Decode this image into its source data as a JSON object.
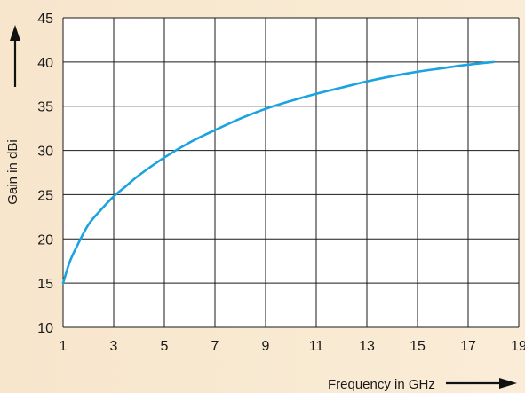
{
  "chart_data": {
    "type": "line",
    "title": "",
    "xlabel": "Frequency  in GHz",
    "ylabel": "Gain in dBi",
    "xlim": [
      1,
      19
    ],
    "ylim": [
      10,
      45
    ],
    "xticks": [
      "1",
      "3",
      "5",
      "7",
      "9",
      "11",
      "13",
      "15",
      "17",
      "19"
    ],
    "yticks": [
      "10",
      "15",
      "20",
      "25",
      "30",
      "35",
      "40",
      "45"
    ],
    "grid": true,
    "legend": "none",
    "series": [
      {
        "color": "#1aa3e0",
        "x": [
          1,
          1.25,
          1.5,
          2,
          2.5,
          3,
          3.5,
          4,
          5,
          6,
          7,
          8,
          9,
          10,
          11,
          12,
          13,
          14,
          15,
          16,
          17,
          18
        ],
        "y": [
          15,
          17.3,
          18.9,
          21.6,
          23.3,
          24.8,
          26.0,
          27.2,
          29.2,
          30.9,
          32.3,
          33.6,
          34.7,
          35.6,
          36.4,
          37.1,
          37.8,
          38.4,
          38.9,
          39.3,
          39.7,
          40.0
        ]
      }
    ]
  },
  "colors": {
    "background_left": "#f7e6cc",
    "background_right": "#faecd7",
    "plot_area": "#ffffff",
    "grid": "#1a1a1a",
    "curve": "#1aa3e0",
    "arrows": "#111111"
  }
}
